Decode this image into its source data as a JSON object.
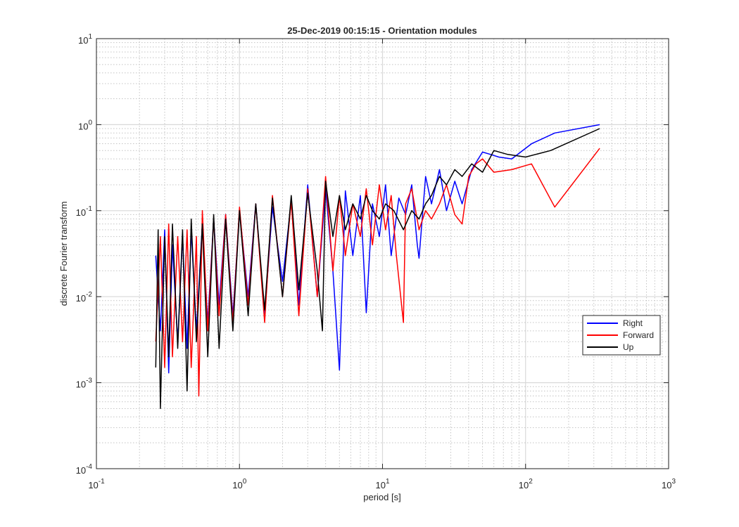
{
  "chart_data": {
    "type": "line",
    "title": "25-Dec-2019 00:15:15 - Orientation modules",
    "xlabel": "period [s]",
    "ylabel": "discrete Fourier transform",
    "xscale": "log",
    "yscale": "log",
    "xlim": [
      0.1,
      1000
    ],
    "ylim": [
      0.0001,
      10
    ],
    "x_ticks": [
      {
        "base": "10",
        "exp": "-1"
      },
      {
        "base": "10",
        "exp": "0"
      },
      {
        "base": "10",
        "exp": "1"
      },
      {
        "base": "10",
        "exp": "2"
      },
      {
        "base": "10",
        "exp": "3"
      }
    ],
    "y_ticks": [
      {
        "base": "10",
        "exp": "-4"
      },
      {
        "base": "10",
        "exp": "-3"
      },
      {
        "base": "10",
        "exp": "-2"
      },
      {
        "base": "10",
        "exp": "-1"
      },
      {
        "base": "10",
        "exp": "0"
      },
      {
        "base": "10",
        "exp": "1"
      }
    ],
    "grid": true,
    "minor_grid": true,
    "legend_position": "lower-right",
    "series": [
      {
        "name": "Right",
        "color": "#0000ff",
        "x": [
          0.26,
          0.28,
          0.3,
          0.32,
          0.34,
          0.37,
          0.4,
          0.43,
          0.46,
          0.5,
          0.55,
          0.6,
          0.66,
          0.72,
          0.8,
          0.9,
          1.0,
          1.15,
          1.3,
          1.5,
          1.7,
          2.0,
          2.3,
          2.6,
          3.0,
          3.5,
          4.0,
          4.5,
          5.0,
          5.5,
          6.2,
          7.0,
          7.7,
          8.5,
          9.5,
          10.5,
          11.5,
          13,
          14.5,
          16,
          17.5,
          18,
          20,
          22,
          25,
          28,
          32,
          36,
          42,
          50,
          57,
          65,
          80,
          110,
          160,
          330
        ],
        "y": [
          0.03,
          0.004,
          0.06,
          0.0013,
          0.04,
          0.003,
          0.05,
          0.0025,
          0.06,
          0.004,
          0.07,
          0.005,
          0.08,
          0.008,
          0.09,
          0.006,
          0.1,
          0.01,
          0.12,
          0.006,
          0.11,
          0.015,
          0.13,
          0.008,
          0.2,
          0.01,
          0.18,
          0.02,
          0.0014,
          0.17,
          0.03,
          0.15,
          0.0065,
          0.12,
          0.05,
          0.2,
          0.03,
          0.14,
          0.09,
          0.2,
          0.04,
          0.028,
          0.25,
          0.12,
          0.3,
          0.1,
          0.22,
          0.12,
          0.3,
          0.48,
          0.45,
          0.42,
          0.4,
          0.6,
          0.8,
          1.0
        ]
      },
      {
        "name": "Forward",
        "color": "#ff0000",
        "x": [
          0.26,
          0.28,
          0.3,
          0.32,
          0.34,
          0.37,
          0.4,
          0.43,
          0.46,
          0.5,
          0.52,
          0.55,
          0.6,
          0.66,
          0.72,
          0.8,
          0.9,
          1.0,
          1.15,
          1.3,
          1.5,
          1.7,
          2.0,
          2.3,
          2.6,
          3.0,
          3.5,
          4.0,
          4.5,
          5.0,
          5.5,
          6.2,
          7.0,
          7.7,
          8.5,
          9.5,
          10.5,
          11.5,
          12.5,
          14,
          14.5,
          16,
          18,
          20,
          22,
          25,
          28,
          32,
          36,
          40,
          45,
          50,
          60,
          80,
          110,
          160,
          330
        ],
        "y": [
          0.003,
          0.05,
          0.0015,
          0.07,
          0.002,
          0.05,
          0.003,
          0.06,
          0.0015,
          0.05,
          0.0007,
          0.1,
          0.004,
          0.08,
          0.006,
          0.09,
          0.005,
          0.11,
          0.008,
          0.12,
          0.005,
          0.15,
          0.01,
          0.13,
          0.006,
          0.18,
          0.01,
          0.25,
          0.02,
          0.15,
          0.03,
          0.12,
          0.05,
          0.18,
          0.04,
          0.2,
          0.06,
          0.15,
          0.03,
          0.005,
          0.12,
          0.18,
          0.06,
          0.1,
          0.08,
          0.12,
          0.2,
          0.09,
          0.07,
          0.25,
          0.35,
          0.4,
          0.28,
          0.3,
          0.35,
          0.11,
          0.53
        ]
      },
      {
        "name": "Up",
        "color": "#000000",
        "x": [
          0.26,
          0.27,
          0.28,
          0.3,
          0.32,
          0.34,
          0.37,
          0.4,
          0.43,
          0.46,
          0.5,
          0.55,
          0.6,
          0.66,
          0.72,
          0.8,
          0.9,
          1.0,
          1.15,
          1.3,
          1.5,
          1.7,
          2.0,
          2.3,
          2.6,
          3.0,
          3.5,
          3.8,
          4.0,
          4.5,
          5.0,
          5.5,
          6.2,
          7.0,
          7.7,
          8.5,
          9.5,
          10.5,
          12,
          14,
          16,
          18,
          20,
          22,
          25,
          28,
          32,
          36,
          42,
          50,
          60,
          75,
          100,
          150,
          330
        ],
        "y": [
          0.0015,
          0.06,
          0.0005,
          0.05,
          0.002,
          0.07,
          0.0025,
          0.06,
          0.0008,
          0.08,
          0.003,
          0.07,
          0.002,
          0.09,
          0.0025,
          0.08,
          0.004,
          0.1,
          0.006,
          0.12,
          0.007,
          0.14,
          0.01,
          0.15,
          0.012,
          0.16,
          0.02,
          0.004,
          0.22,
          0.05,
          0.15,
          0.06,
          0.12,
          0.08,
          0.15,
          0.1,
          0.08,
          0.12,
          0.1,
          0.06,
          0.1,
          0.08,
          0.12,
          0.15,
          0.25,
          0.2,
          0.3,
          0.25,
          0.35,
          0.28,
          0.5,
          0.45,
          0.42,
          0.5,
          0.9
        ]
      }
    ]
  }
}
